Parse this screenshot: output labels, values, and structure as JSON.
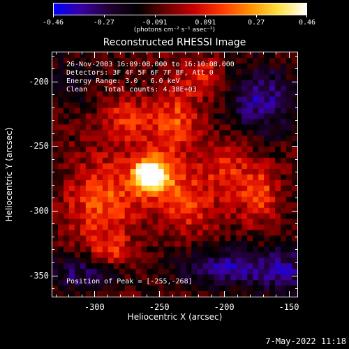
{
  "colorbar": {
    "ticks": [
      "-0.46",
      "-0.27",
      "-0.091",
      "0.091",
      "0.27",
      "0.46"
    ],
    "unit_label": "(photons cm⁻² s⁻¹ asec⁻²)",
    "range": [
      -0.46,
      0.46
    ],
    "stops": [
      "#0000ff",
      "#3a00a0",
      "#200030",
      "#000000",
      "#6a0000",
      "#c80000",
      "#ff3a00",
      "#ff9000",
      "#ffe040",
      "#ffffff"
    ]
  },
  "plot": {
    "title": "Reconstructed RHESSI Image",
    "info_lines": [
      "26-Nov-2003 16:09:08.000 to 16:10:08.000",
      "Detectors: 3F 4F 5F 6F 7F 8F, Att 0",
      "Energy Range: 3.0 - 6.0 keV",
      "Clean    Total counts: 4.38E+03"
    ],
    "peak_text": "Position of Peak = [-255,-268]",
    "x_label": "Heliocentric X (arcsec)",
    "y_label": "Heliocentric Y (arcsec)",
    "x_ticks": [
      "-300",
      "-250",
      "-200",
      "-150"
    ],
    "y_ticks": [
      "-200",
      "-250",
      "-300",
      "-350"
    ]
  },
  "chart_data": {
    "type": "heatmap",
    "title": "Reconstructed RHESSI Image",
    "xlabel": "Heliocentric X (arcsec)",
    "ylabel": "Heliocentric Y (arcsec)",
    "xlim": [
      -333,
      -143
    ],
    "ylim": [
      -367,
      -177
    ],
    "x_ticks": [
      -300,
      -250,
      -200,
      -150
    ],
    "y_ticks": [
      -200,
      -250,
      -300,
      -350
    ],
    "value_range": [
      -0.46,
      0.46
    ],
    "peak": {
      "x": -255,
      "y": -268
    }
  },
  "footer": {
    "timestamp": "7-May-2022 11:18"
  }
}
